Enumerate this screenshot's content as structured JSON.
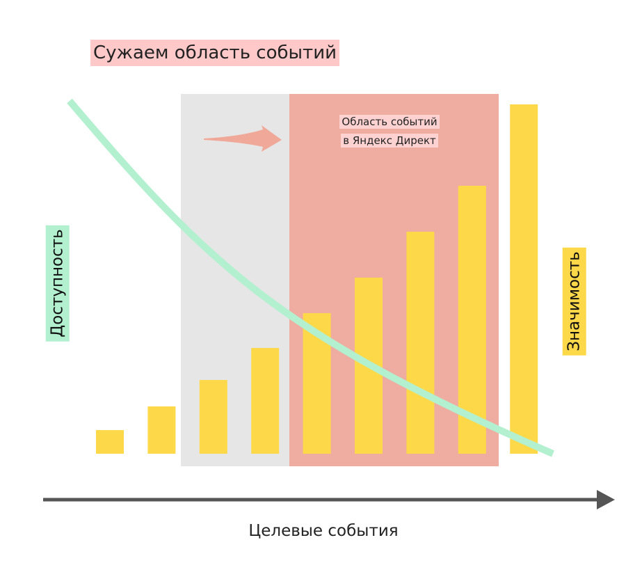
{
  "title": "Сужаем область событий",
  "region_label_line1": "Область событий",
  "region_label_line2": "в Яндекс Директ",
  "left_axis_label": "Доступность",
  "right_axis_label": "Значимость",
  "x_axis_label": "Целевые события",
  "colors": {
    "title_bg": "#ffc9c9",
    "region_gray": "#e6e6e6",
    "region_salmon": "#efaca0",
    "region_label_bg": "#ffd2d2",
    "bars": "#fdd94a",
    "curve": "#b2f0cf",
    "arrow": "#f0a898",
    "availability_bg": "#b2f0cf",
    "significance_bg": "#fdd94a",
    "axis": "#555555"
  },
  "bars": [
    {
      "value": 34
    },
    {
      "value": 68
    },
    {
      "value": 106
    },
    {
      "value": 152
    },
    {
      "value": 202
    },
    {
      "value": 253
    },
    {
      "value": 319
    },
    {
      "value": 385
    },
    {
      "value": 502
    }
  ]
}
